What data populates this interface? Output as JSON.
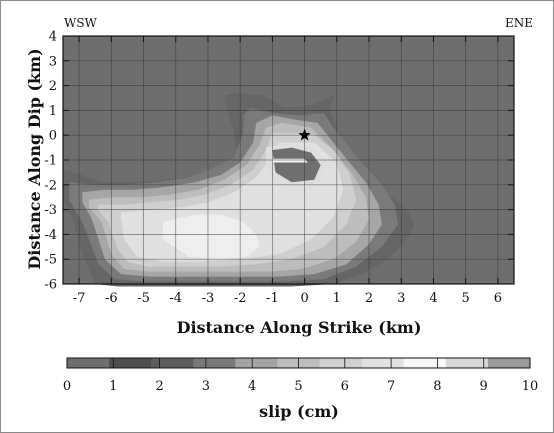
{
  "chart_data": [
    {
      "type": "heatmap",
      "plot": "contour",
      "corner_labels": {
        "left": "WSW",
        "right": "ENE"
      },
      "xlabel": "Distance Along Strike (km)",
      "ylabel": "Distance Along Dip (km)",
      "xlim": [
        -7.5,
        6.5
      ],
      "ylim": [
        -6,
        4
      ],
      "xticks": [
        -7,
        -6,
        -5,
        -4,
        -3,
        -2,
        -1,
        0,
        1,
        2,
        3,
        4,
        5,
        6
      ],
      "yticks": [
        4,
        3,
        2,
        1,
        0,
        -1,
        -2,
        -3,
        -4,
        -5,
        -6
      ],
      "grid": true,
      "background_level": [
        0,
        1
      ],
      "hypocenter": {
        "x": 0,
        "y": 0,
        "marker": "star"
      },
      "contour_levels": [
        {
          "range": [
            1,
            2
          ],
          "color": "#666666",
          "x": [
            -7.5,
            -6.9,
            -6.3,
            -5.3,
            -4.3,
            -3.3,
            -2.5,
            -2.1,
            -2.2,
            -2.4,
            -2.5,
            -2.2,
            -1.3,
            -0.6,
            0.2,
            0.9,
            0.8,
            1.2,
            1.9,
            2.6,
            3.2,
            3.4,
            3.1,
            2.6,
            1.8,
            0.9,
            -0.4,
            -1.8,
            -3.4,
            -4.8,
            -5.8,
            -6.5,
            -6.9,
            -7.2,
            -7.5
          ],
          "y": [
            -1.4,
            -1.6,
            -1.9,
            -1.9,
            -1.8,
            -1.6,
            -1.2,
            -0.8,
            0.2,
            1.0,
            1.6,
            1.7,
            1.6,
            1.1,
            1.2,
            1.6,
            1.0,
            -0.5,
            -1.4,
            -2.4,
            -3.0,
            -3.7,
            -4.3,
            -5.0,
            -5.6,
            -6.0,
            -6.1,
            -6.1,
            -6.1,
            -6.1,
            -6.1,
            -6.0,
            -4.8,
            -3.4,
            -2.6
          ]
        },
        {
          "range": [
            2,
            3
          ],
          "color": "#7a7a7a",
          "x": [
            -7.3,
            -6.6,
            -5.6,
            -4.6,
            -3.6,
            -2.8,
            -2.2,
            -1.9,
            -1.9,
            -1.7,
            -1.0,
            -0.2,
            0.6,
            0.9,
            1.7,
            2.4,
            2.8,
            2.9,
            2.4,
            1.6,
            0.6,
            -0.6,
            -2.0,
            -3.6,
            -5.0,
            -5.9,
            -6.4,
            -6.9,
            -7.3
          ],
          "y": [
            -1.9,
            -2.0,
            -2.0,
            -1.9,
            -1.7,
            -1.3,
            -0.9,
            0.1,
            0.8,
            1.1,
            0.9,
            0.8,
            0.9,
            0.3,
            -1.0,
            -2.0,
            -2.8,
            -3.6,
            -4.5,
            -5.3,
            -5.8,
            -5.9,
            -5.9,
            -5.9,
            -5.9,
            -5.8,
            -5.2,
            -3.5,
            -2.6
          ]
        },
        {
          "range": [
            3,
            4
          ],
          "color": "#a6a6a6",
          "x": [
            -6.9,
            -6.2,
            -5.3,
            -4.4,
            -3.4,
            -2.6,
            -2.0,
            -1.6,
            -1.5,
            -1.0,
            -0.2,
            0.4,
            1.2,
            1.9,
            2.3,
            2.4,
            2.0,
            1.3,
            0.3,
            -0.8,
            -2.1,
            -3.5,
            -4.8,
            -5.7,
            -6.2,
            -6.6,
            -6.9
          ],
          "y": [
            -2.3,
            -2.2,
            -2.2,
            -2.1,
            -1.9,
            -1.6,
            -1.1,
            -0.3,
            0.5,
            0.8,
            0.6,
            0.5,
            -0.8,
            -1.9,
            -2.8,
            -3.6,
            -4.4,
            -5.2,
            -5.6,
            -5.7,
            -5.7,
            -5.7,
            -5.7,
            -5.6,
            -5.0,
            -3.4,
            -2.7
          ]
        },
        {
          "range": [
            4,
            5
          ],
          "color": "#bdbdbd",
          "x": [
            -6.7,
            -6.0,
            -5.1,
            -4.2,
            -3.3,
            -2.5,
            -1.8,
            -1.4,
            -1.2,
            -0.7,
            0.2,
            0.9,
            1.5,
            1.9,
            2.0,
            1.6,
            0.9,
            -0.1,
            -1.1,
            -2.3,
            -3.6,
            -4.8,
            -5.6,
            -6.0,
            -6.3,
            -6.7
          ],
          "y": [
            -2.6,
            -2.5,
            -2.5,
            -2.4,
            -2.2,
            -1.8,
            -1.2,
            -0.4,
            0.3,
            0.5,
            0.3,
            -0.6,
            -1.6,
            -2.5,
            -3.4,
            -4.3,
            -5.0,
            -5.4,
            -5.5,
            -5.5,
            -5.5,
            -5.5,
            -5.4,
            -4.8,
            -3.5,
            -2.9
          ]
        },
        {
          "range": [
            5,
            6
          ],
          "color": "#cfcfcf",
          "x": [
            -6.4,
            -5.6,
            -4.8,
            -3.9,
            -3.1,
            -2.3,
            -1.6,
            -1.2,
            -1.0,
            0.2,
            0.9,
            1.4,
            1.6,
            1.3,
            0.6,
            -0.4,
            -1.5,
            -2.6,
            -3.8,
            -4.9,
            -5.5,
            -5.8,
            -6.1,
            -6.4
          ],
          "y": [
            -2.8,
            -2.8,
            -2.7,
            -2.6,
            -2.4,
            -2.0,
            -1.4,
            -0.6,
            0.1,
            0.1,
            -0.6,
            -1.6,
            -2.6,
            -3.6,
            -4.5,
            -5.0,
            -5.2,
            -5.3,
            -5.3,
            -5.3,
            -5.1,
            -4.6,
            -3.5,
            -3.0
          ]
        },
        {
          "range": [
            6,
            7
          ],
          "color": "#e0e0e0",
          "x": [
            -5.7,
            -4.7,
            -3.8,
            -3.0,
            -2.2,
            -1.5,
            -1.1,
            -0.8,
            0.3,
            1.0,
            1.2,
            0.9,
            0.2,
            -0.8,
            -2.0,
            -3.3,
            -4.4,
            -5.2,
            -5.6,
            -5.7
          ],
          "y": [
            -3.1,
            -3.0,
            -2.9,
            -2.7,
            -2.3,
            -1.7,
            -1.0,
            -0.3,
            -0.3,
            -1.1,
            -2.2,
            -3.3,
            -4.2,
            -4.8,
            -5.0,
            -5.1,
            -5.1,
            -4.9,
            -4.2,
            -3.3
          ]
        },
        {
          "range": [
            7,
            8
          ],
          "color": "#eeeeee",
          "x": [
            -4.4,
            -3.4,
            -2.6,
            -1.9,
            -1.5,
            -1.4,
            -1.8,
            -2.6,
            -3.6,
            -4.4
          ],
          "y": [
            -3.5,
            -3.2,
            -3.2,
            -3.5,
            -4.0,
            -4.5,
            -4.9,
            -5.0,
            -4.9,
            -4.2
          ]
        },
        {
          "range": [
            6,
            7
          ],
          "color": "#dedede",
          "x": [
            -1.2,
            -0.5,
            0.3,
            0.7,
            0.5,
            -0.4,
            -1.1,
            -1.2
          ],
          "y": [
            -0.5,
            -0.3,
            -0.5,
            -1.1,
            -1.9,
            -2.1,
            -1.8,
            -1.1
          ]
        },
        {
          "range": [
            2,
            3
          ],
          "color": "#6f6f6f",
          "x": [
            -1.0,
            -0.4,
            0.2,
            0.5,
            0.3,
            -0.4,
            -0.9
          ],
          "y": [
            -0.6,
            -0.5,
            -0.7,
            -1.2,
            -1.8,
            -1.9,
            -1.5
          ]
        },
        {
          "range": [
            8,
            9
          ],
          "color": "#f7f7f7",
          "x": [
            -1.0,
            0.0,
            0.1,
            -1.0
          ],
          "y": [
            -0.95,
            -0.95,
            -1.1,
            -1.1
          ]
        }
      ]
    },
    {
      "type": "heatmap",
      "plot": "colorbar",
      "xlabel": "slip (cm)",
      "ticks": [
        0,
        1,
        2,
        3,
        4,
        5,
        6,
        7,
        8,
        9,
        10
      ],
      "colors": [
        "#6e6e6e",
        "#4e4e4e",
        "#5e5e5e",
        "#7a7a7a",
        "#a3a3a3",
        "#bdbdbd",
        "#cfcfcf",
        "#e2e2e2",
        "#f7f7f7",
        "#d8d8d8",
        "#999999"
      ]
    }
  ]
}
